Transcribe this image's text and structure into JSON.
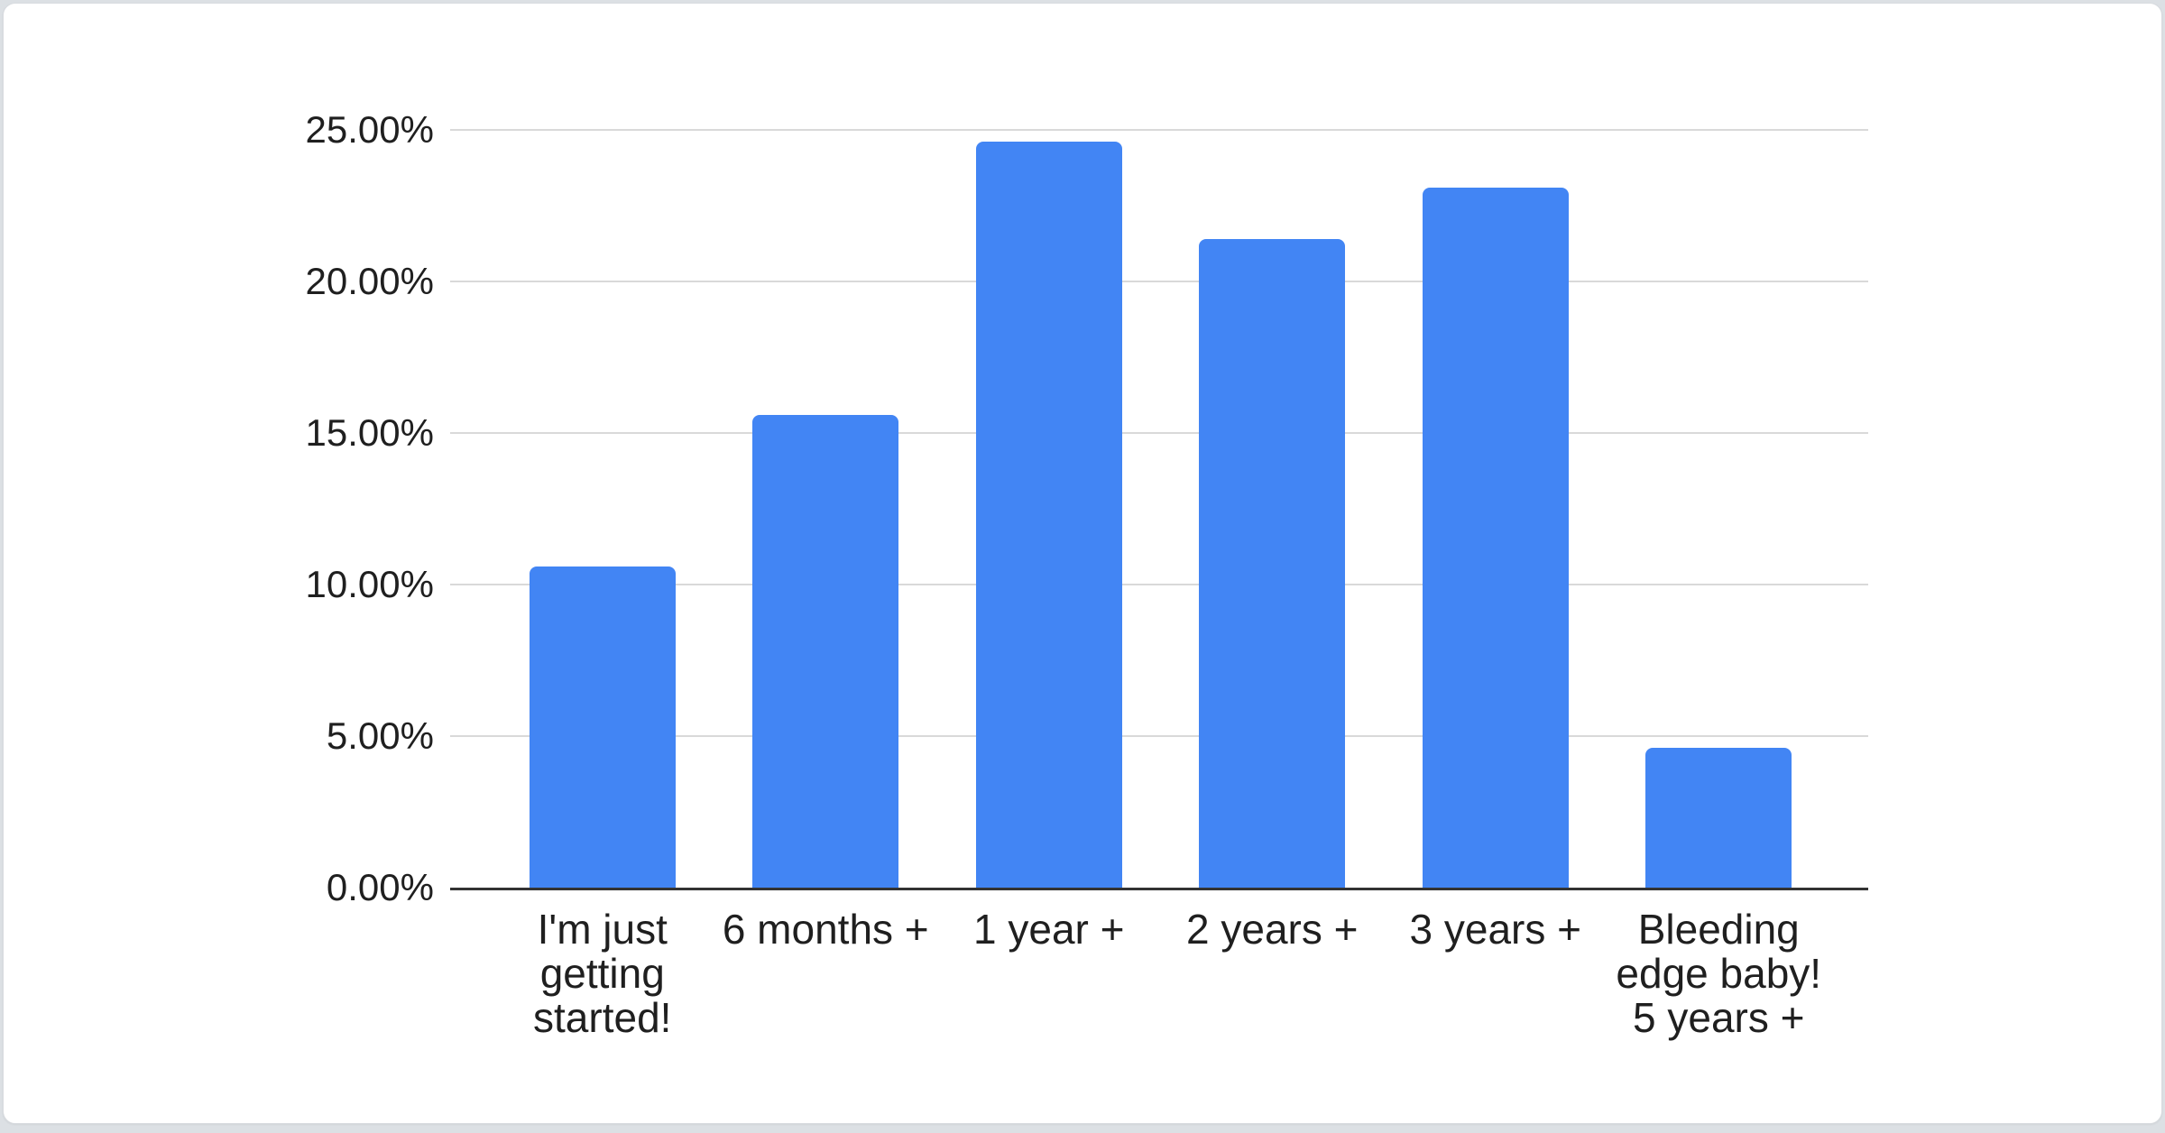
{
  "page_background": "#dce0e4",
  "card_background": "#ffffff",
  "chart_data": {
    "type": "bar",
    "title": "",
    "categories": [
      "I'm just getting started!",
      "6 months +",
      "1 year +",
      "2 years +",
      "3 years +",
      "Bleeding edge baby! 5 years +"
    ],
    "category_lines": [
      [
        "I'm just",
        "getting",
        "started!"
      ],
      [
        "6 months +"
      ],
      [
        "1 year +"
      ],
      [
        "2 years +"
      ],
      [
        "3 years +"
      ],
      [
        "Bleeding",
        "edge baby!",
        "5 years +"
      ]
    ],
    "values": [
      10.6,
      15.6,
      24.6,
      21.4,
      23.1,
      4.6
    ],
    "value_unit": "%",
    "xlabel": "",
    "ylabel": "",
    "ylim": [
      0,
      25
    ],
    "y_ticks": [
      {
        "value": 25,
        "label": "25.00%"
      },
      {
        "value": 20,
        "label": "20.00%"
      },
      {
        "value": 15,
        "label": "15.00%"
      },
      {
        "value": 10,
        "label": "10.00%"
      },
      {
        "value": 5,
        "label": "5.00%"
      },
      {
        "value": 0,
        "label": "0.00%"
      }
    ],
    "grid": true,
    "legend": "none",
    "bar_color": "#4285f4",
    "gridline_color": "#d9d9d9",
    "axis_line_color": "#333333",
    "text_color": "#1f1f1f"
  }
}
